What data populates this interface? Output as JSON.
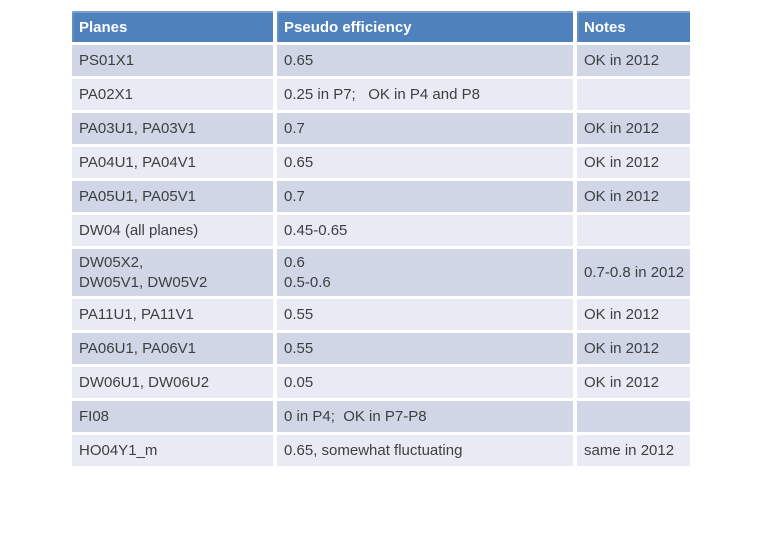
{
  "table": {
    "columns": [
      "Planes",
      "Pseudo efficiency",
      "Notes"
    ],
    "rows": [
      {
        "planes": "PS01X1",
        "efficiency": "0.65",
        "notes": "OK in 2012"
      },
      {
        "planes": "PA02X1",
        "efficiency": "0.25 in P7;   OK in P4 and P8",
        "notes": ""
      },
      {
        "planes": "PA03U1, PA03V1",
        "efficiency": "0.7",
        "notes": "OK in 2012"
      },
      {
        "planes": "PA04U1, PA04V1",
        "efficiency": "0.65",
        "notes": "OK in 2012"
      },
      {
        "planes": "PA05U1, PA05V1",
        "efficiency": "0.7",
        "notes": "OK in 2012"
      },
      {
        "planes": "DW04 (all planes)",
        "efficiency": "0.45-0.65",
        "notes": ""
      },
      {
        "planes": "DW05X2,\nDW05V1, DW05V2",
        "efficiency": "0.6\n0.5-0.6",
        "notes": "0.7-0.8 in 2012"
      },
      {
        "planes": "PA11U1, PA11V1",
        "efficiency": "0.55",
        "notes": "OK in 2012"
      },
      {
        "planes": "PA06U1, PA06V1",
        "efficiency": "0.55",
        "notes": "OK in 2012"
      },
      {
        "planes": "DW06U1, DW06U2",
        "efficiency": "0.05",
        "notes": "OK in 2012"
      },
      {
        "planes": "FI08",
        "efficiency": "0 in P4;  OK in P7-P8",
        "notes": ""
      },
      {
        "planes": "HO04Y1_m",
        "efficiency": "0.65, somewhat fluctuating",
        "notes": "same in 2012"
      }
    ]
  },
  "colors": {
    "header_bg": "#4f81bd",
    "header_text": "#ffffff",
    "row_band_dark": "#d0d6e6",
    "row_band_light": "#e9ebf4",
    "body_text": "#3f3f3f",
    "background": "#ffffff"
  }
}
